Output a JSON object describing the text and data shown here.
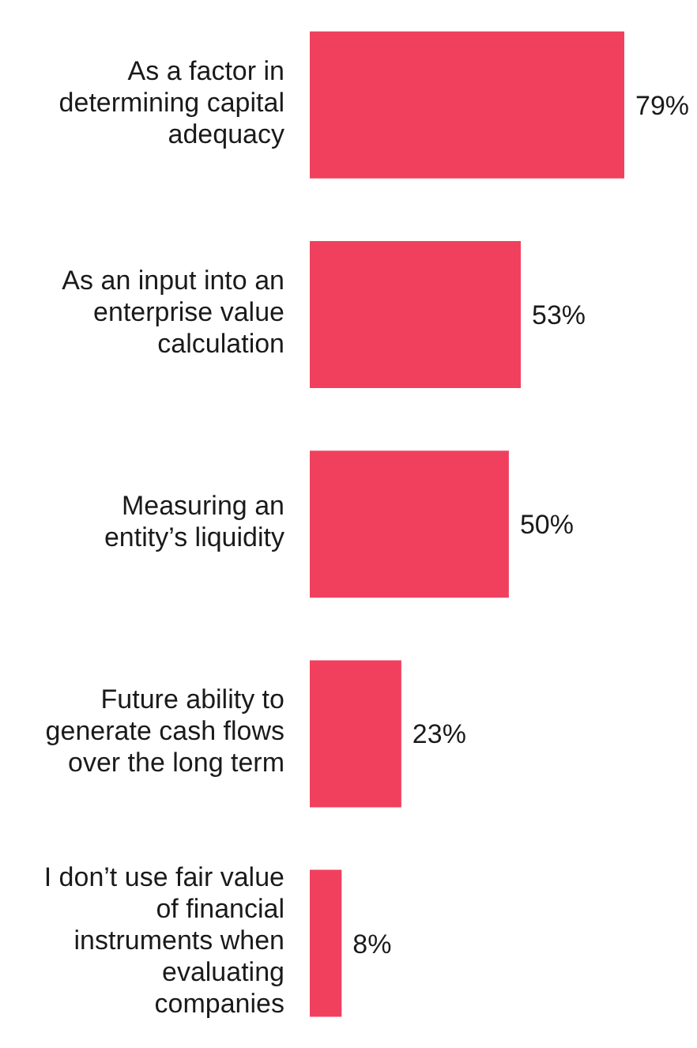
{
  "chart_data": {
    "type": "bar",
    "orientation": "horizontal",
    "categories": [
      "As a factor in determining capital adequacy",
      "As an input into an enterprise value calculation",
      "Measuring an entity’s liquidity",
      "Future ability to generate cash flows over the long term",
      "I don’t use fair value of financial instruments when evaluating companies"
    ],
    "values": [
      79,
      53,
      50,
      23,
      8
    ],
    "value_labels": [
      "79%",
      "53%",
      "50%",
      "23%",
      "8%"
    ],
    "color": "#f0405e"
  }
}
